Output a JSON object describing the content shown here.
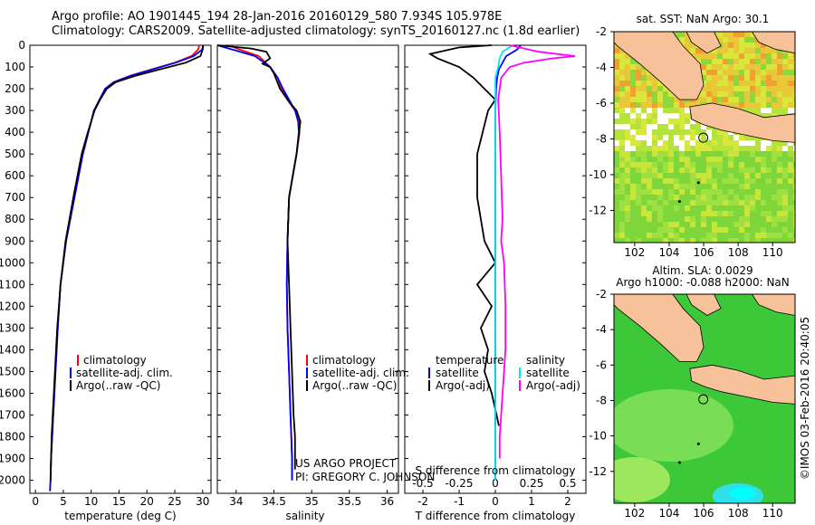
{
  "header": {
    "line1": "Argo profile: AO 1901445_194 28-Jan-2016 20160129_580 7.934S 105.978E",
    "line2": "Climatology: CARS2009. Satellite-adjusted climatology: synTS_20160127.nc (1.8d earlier)"
  },
  "colors": {
    "climatology": "#ff0000",
    "satellite": "#0000ff",
    "argo": "#000000",
    "salinity_satellite": "#00e5ee",
    "salinity_argo": "#ff00ff",
    "land": "#f7c19a"
  },
  "depth_axis": {
    "ticks": [
      "0",
      "100",
      "200",
      "300",
      "400",
      "500",
      "600",
      "700",
      "800",
      "900",
      "1000",
      "1100",
      "1200",
      "1300",
      "1400",
      "1500",
      "1600",
      "1700",
      "1800",
      "1900",
      "2000"
    ]
  },
  "panels": {
    "temperature": {
      "xlabel": "temperature (deg C)",
      "xticks": [
        "0",
        "5",
        "10",
        "15",
        "20",
        "25",
        "30"
      ],
      "legend": [
        "climatology",
        "satellite-adj. clim.",
        "Argo(..raw -QC)"
      ]
    },
    "salinity": {
      "xlabel": "salinity",
      "xticks": [
        "34",
        "34.5",
        "35",
        "35.5",
        "36"
      ],
      "legend": [
        "climatology",
        "satellite-adj. clim.",
        "Argo(..raw -QC)"
      ],
      "credit1": "US ARGO PROJECT",
      "credit2": "PI: GREGORY C. JOHNSON"
    },
    "difference": {
      "toplabel": "S difference from climatology",
      "xlabel": "T difference from climatology",
      "top_ticks": [
        "-0.5",
        "-0.25",
        "0",
        "0.25",
        "0.5"
      ],
      "bottom_ticks": [
        "-2",
        "-1",
        "0",
        "1",
        "2"
      ],
      "legend_temp_title": "temperature",
      "legend_sal_title": "salinity",
      "legend_temp": [
        "satellite",
        "Argo(-adj)"
      ],
      "legend_sal": [
        "satellite",
        "Argo(-adj)"
      ]
    }
  },
  "maps": {
    "sst_title": "sat. SST: NaN Argo: 30.1",
    "sla_title1": "Altim. SLA: 0.0029",
    "sla_title2": "Argo h1000: -0.088 h2000: NaN",
    "xticks": [
      "102",
      "104",
      "106",
      "108",
      "110"
    ],
    "yticks": [
      "-2",
      "-4",
      "-6",
      "-8",
      "-10",
      "-12"
    ],
    "float_lon": 105.978,
    "float_lat": -7.934
  },
  "imos_label": "©IMOS 03-Feb-2016 20:40:05",
  "chart_data": [
    {
      "type": "line",
      "name": "temperature",
      "xlabel": "temperature (deg C)",
      "ylabel": "",
      "xlim": [
        -1,
        31.5
      ],
      "ylim": [
        2060,
        0
      ],
      "series": [
        {
          "name": "climatology",
          "x": [
            29.4,
            29.2,
            28.0,
            25.0,
            21.0,
            17.0,
            14.0,
            12.5,
            11.5,
            10.5,
            9.5,
            8.5,
            7.0,
            5.5,
            4.5,
            4.0,
            3.6,
            3.2,
            3.0,
            2.8,
            2.7,
            2.6
          ],
          "y": [
            0,
            20,
            50,
            80,
            110,
            140,
            170,
            200,
            250,
            300,
            400,
            500,
            700,
            900,
            1100,
            1300,
            1500,
            1700,
            1800,
            1900,
            2000,
            2050
          ]
        },
        {
          "name": "satellite-adj. clim.",
          "x": [
            30.1,
            29.9,
            28.4,
            25.2,
            21.2,
            17.2,
            14.1,
            12.5,
            11.5,
            10.5,
            9.5,
            8.5,
            7.0,
            5.5,
            4.5,
            4.0,
            3.6,
            3.2,
            3.0,
            2.8,
            2.7,
            2.6
          ],
          "y": [
            0,
            20,
            50,
            80,
            110,
            140,
            170,
            200,
            250,
            300,
            400,
            500,
            700,
            900,
            1100,
            1300,
            1500,
            1700,
            1800,
            1900,
            2000,
            2050
          ]
        },
        {
          "name": "Argo(..raw -QC)",
          "x": [
            30.1,
            30.0,
            29.6,
            27.0,
            22.5,
            18.0,
            14.4,
            12.8,
            11.6,
            10.6,
            9.4,
            8.3,
            6.8,
            5.4,
            4.5,
            3.9,
            3.5,
            3.1,
            2.9,
            2.8,
            2.7
          ],
          "y": [
            0,
            20,
            50,
            80,
            110,
            140,
            170,
            200,
            250,
            300,
            400,
            500,
            700,
            900,
            1100,
            1300,
            1500,
            1700,
            1800,
            1900,
            2000
          ]
        }
      ]
    },
    {
      "type": "line",
      "name": "salinity",
      "xlabel": "salinity",
      "ylabel": "",
      "xlim": [
        33.75,
        36.15
      ],
      "ylim": [
        2060,
        0
      ],
      "series": [
        {
          "name": "climatology",
          "x": [
            33.9,
            34.05,
            34.3,
            34.45,
            34.55,
            34.6,
            34.68,
            34.78,
            34.83,
            34.84,
            34.8,
            34.75,
            34.7,
            34.68,
            34.67,
            34.68,
            34.7,
            34.72,
            34.73,
            34.74,
            34.74
          ],
          "y": [
            0,
            20,
            50,
            100,
            150,
            200,
            250,
            300,
            350,
            400,
            500,
            600,
            700,
            900,
            1100,
            1300,
            1500,
            1700,
            1800,
            1900,
            2000
          ]
        },
        {
          "name": "satellite-adj. clim.",
          "x": [
            33.75,
            33.95,
            34.25,
            34.45,
            34.55,
            34.62,
            34.7,
            34.78,
            34.82,
            34.83,
            34.8,
            34.75,
            34.7,
            34.68,
            34.67,
            34.68,
            34.7,
            34.72,
            34.73,
            34.74,
            34.74
          ],
          "y": [
            0,
            20,
            50,
            100,
            150,
            200,
            250,
            300,
            350,
            400,
            500,
            600,
            700,
            900,
            1100,
            1300,
            1500,
            1700,
            1800,
            1900,
            2000
          ]
        },
        {
          "name": "Argo(..raw -QC)",
          "x": [
            33.75,
            34.2,
            34.4,
            34.45,
            34.35,
            34.45,
            34.5,
            34.58,
            34.7,
            34.8,
            34.85,
            34.8,
            34.75,
            34.7,
            34.68,
            34.7,
            34.72,
            34.74,
            34.76,
            34.78,
            34.78,
            34.78
          ],
          "y": [
            0,
            15,
            30,
            60,
            85,
            100,
            130,
            200,
            260,
            300,
            350,
            500,
            600,
            700,
            900,
            1100,
            1300,
            1500,
            1700,
            1800,
            1900,
            1950
          ]
        }
      ]
    },
    {
      "type": "line",
      "name": "differences",
      "xlabel": "T difference from climatology",
      "x2label": "S difference from climatology",
      "xlim_T": [
        -2.5,
        2.5
      ],
      "xlim_S": [
        -0.625,
        0.625
      ],
      "ylim": [
        2060,
        0
      ],
      "series": [
        {
          "name": "temperature satellite",
          "axis": "T",
          "x": [
            0.7,
            0.6,
            0.3,
            0.2,
            0.1,
            0.05,
            0.02,
            0.0,
            0.0,
            0.0,
            0.0
          ],
          "y": [
            0,
            20,
            50,
            80,
            110,
            150,
            200,
            300,
            500,
            1000,
            2000
          ]
        },
        {
          "name": "temperature Argo(-adj)",
          "axis": "T",
          "x": [
            -0.1,
            -1.0,
            -1.8,
            -1.6,
            -1.0,
            -0.6,
            -0.3,
            0.0,
            -0.2,
            -0.5,
            -0.5,
            -0.4,
            -0.3,
            0.0,
            -0.5,
            -0.1,
            -0.4,
            -0.2,
            -0.3,
            -0.1,
            0.1
          ],
          "y": [
            0,
            10,
            40,
            60,
            100,
            150,
            200,
            250,
            300,
            500,
            700,
            800,
            900,
            1000,
            1100,
            1200,
            1300,
            1400,
            1500,
            1600,
            1750
          ]
        },
        {
          "name": "salinity satellite",
          "axis": "S",
          "x": [
            0.12,
            0.05,
            0.03,
            0.02,
            0.0,
            0.0,
            0.0,
            0.0,
            0.0
          ],
          "y": [
            0,
            30,
            60,
            100,
            150,
            200,
            500,
            1000,
            2000
          ]
        },
        {
          "name": "salinity Argo(-adj)",
          "axis": "S",
          "x": [
            0.1,
            0.3,
            0.55,
            0.4,
            0.2,
            0.1,
            0.04,
            0.02,
            0.03,
            0.04,
            0.05,
            0.04,
            0.06,
            0.07,
            0.07,
            0.06,
            0.04,
            0.03,
            0.03
          ],
          "y": [
            0,
            30,
            50,
            60,
            80,
            100,
            150,
            250,
            400,
            600,
            800,
            900,
            1000,
            1200,
            1400,
            1500,
            1700,
            1800,
            1900
          ]
        }
      ]
    }
  ]
}
